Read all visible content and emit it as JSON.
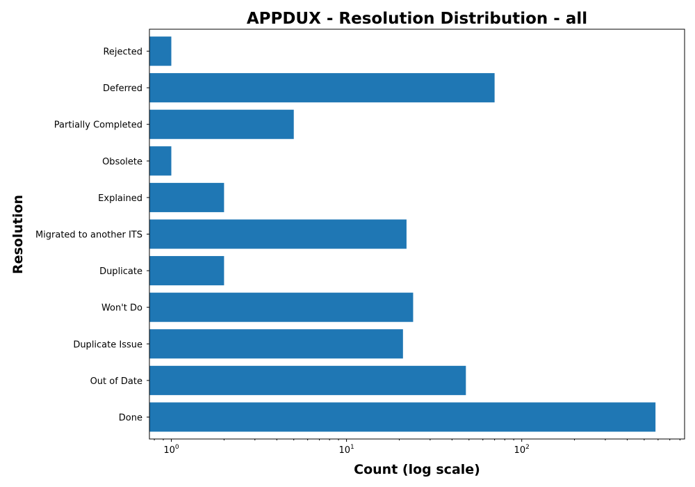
{
  "chart_data": {
    "type": "bar",
    "orientation": "horizontal",
    "title": "APPDUX - Resolution Distribution - all",
    "xlabel": "Count (log scale)",
    "ylabel": "Resolution",
    "x_scale": "log",
    "xlim": [
      0.75,
      850
    ],
    "x_ticks": [
      {
        "value": 1,
        "base": "10",
        "exp": "0"
      },
      {
        "value": 10,
        "base": "10",
        "exp": "1"
      },
      {
        "value": 100,
        "base": "10",
        "exp": "2"
      }
    ],
    "bar_color": "#1f77b4",
    "categories": [
      "Rejected",
      "Deferred",
      "Partially Completed",
      "Obsolete",
      "Explained",
      "Migrated to another ITS",
      "Duplicate",
      "Won't Do",
      "Duplicate Issue",
      "Out of Date",
      "Done"
    ],
    "values": [
      1,
      70,
      5,
      1,
      2,
      22,
      2,
      24,
      21,
      48,
      580
    ],
    "grid": false,
    "legend": "none"
  }
}
